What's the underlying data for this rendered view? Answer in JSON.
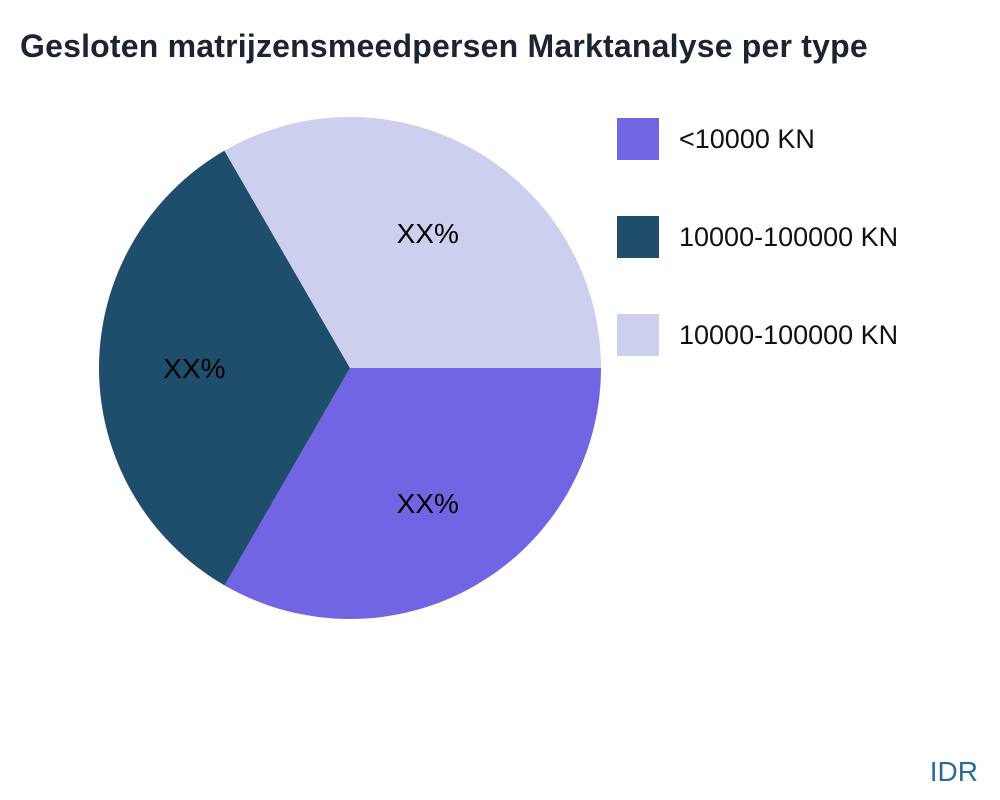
{
  "title": "Gesloten matrijzensmeedpersen Marktanalyse per type",
  "watermark": "IDR",
  "chart_data": {
    "type": "pie",
    "title": "Gesloten matrijzensmeedpersen Marktanalyse per type",
    "labels": [
      "<10000 KN",
      "10000-100000 KN",
      "10000-100000 KN"
    ],
    "values": [
      33.33,
      33.33,
      33.34
    ],
    "slice_text": [
      "XX%",
      "XX%",
      "XX%"
    ],
    "colors": [
      "#7165e4",
      "#1f4e6d",
      "#cdcfef"
    ],
    "start_angle_deg": 0,
    "direction": "clockwise",
    "legend_position": "right",
    "title_color": "#1b2430",
    "watermark_color": "#2b6a99",
    "label_color": "#000000"
  }
}
